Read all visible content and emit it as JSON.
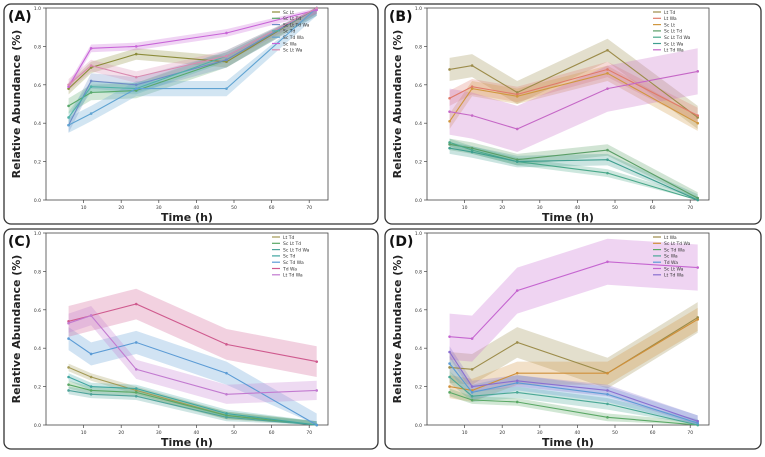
{
  "chart_data": [
    {
      "type": "line",
      "panel_label": "(A)",
      "xlabel": "Time (h)",
      "ylabel": "Relative Abundance (%)",
      "xlim": [
        0,
        75
      ],
      "ylim": [
        0,
        1.0
      ],
      "xticks": [
        10,
        20,
        30,
        40,
        50,
        60,
        70
      ],
      "yticks": [
        0.0,
        0.2,
        0.4,
        0.6,
        0.8,
        1.0
      ],
      "legend_position": "top-right",
      "x": [
        6,
        12,
        24,
        48,
        72
      ],
      "series": [
        {
          "name": "Sc Lt",
          "color": "#8c8c3a",
          "values": [
            0.58,
            0.69,
            0.76,
            0.72,
            1.0
          ],
          "band": 0.03
        },
        {
          "name": "Sc Lt Td",
          "color": "#58a86a",
          "values": [
            0.49,
            0.56,
            0.57,
            0.73,
            1.0
          ],
          "band": 0.04
        },
        {
          "name": "Sc Lt Td Wa",
          "color": "#6e8bc7",
          "values": [
            0.39,
            0.62,
            0.6,
            0.73,
            1.0
          ],
          "band": 0.04
        },
        {
          "name": "Sc Td",
          "color": "#4fb3a8",
          "values": [
            0.43,
            0.59,
            0.58,
            0.75,
            1.0
          ],
          "band": 0.03
        },
        {
          "name": "Sc Td Wa",
          "color": "#5fa3d2",
          "values": [
            0.39,
            0.45,
            0.58,
            0.58,
            1.0
          ],
          "band": 0.04
        },
        {
          "name": "Sc Wa",
          "color": "#c865d8",
          "values": [
            0.59,
            0.79,
            0.8,
            0.87,
            0.99
          ],
          "band": 0.02
        },
        {
          "name": "Sc Lt Wa",
          "color": "#d98ab0",
          "values": [
            0.6,
            0.7,
            0.64,
            0.75,
            1.0
          ],
          "band": 0.03
        }
      ]
    },
    {
      "type": "line",
      "panel_label": "(B)",
      "xlabel": "Time (h)",
      "ylabel": "Relative Abundance (%)",
      "xlim": [
        0,
        75
      ],
      "ylim": [
        0,
        1.0
      ],
      "xticks": [
        10,
        20,
        30,
        40,
        50,
        60,
        70
      ],
      "yticks": [
        0.0,
        0.2,
        0.4,
        0.6,
        0.8,
        1.0
      ],
      "legend_position": "top-right",
      "x": [
        6,
        12,
        24,
        48,
        72
      ],
      "series": [
        {
          "name": "Lt Td",
          "color": "#9c8c4a",
          "values": [
            0.68,
            0.7,
            0.56,
            0.78,
            0.43
          ],
          "band": 0.06
        },
        {
          "name": "Lt Wa",
          "color": "#e07a6a",
          "values": [
            0.53,
            0.59,
            0.55,
            0.68,
            0.44
          ],
          "band": 0.04
        },
        {
          "name": "Sc Lt",
          "color": "#d0973f",
          "values": [
            0.41,
            0.58,
            0.54,
            0.66,
            0.4
          ],
          "band": 0.04
        },
        {
          "name": "Sc Lt Td",
          "color": "#5a9e66",
          "values": [
            0.29,
            0.27,
            0.21,
            0.26,
            0.01
          ],
          "band": 0.03
        },
        {
          "name": "Sc Lt Td Wa",
          "color": "#4aa88a",
          "values": [
            0.3,
            0.26,
            0.2,
            0.14,
            0.0
          ],
          "band": 0.02
        },
        {
          "name": "Sc Lt Wa",
          "color": "#3f9e8f",
          "values": [
            0.27,
            0.25,
            0.2,
            0.21,
            0.0
          ],
          "band": 0.03
        },
        {
          "name": "Lt Td Wa",
          "color": "#c567c6",
          "values": [
            0.46,
            0.44,
            0.37,
            0.58,
            0.67
          ],
          "band": 0.12
        }
      ]
    },
    {
      "type": "line",
      "panel_label": "(C)",
      "xlabel": "Time (h)",
      "ylabel": "Relative Abundance (%)",
      "xlim": [
        0,
        75
      ],
      "ylim": [
        0,
        1.0
      ],
      "xticks": [
        10,
        20,
        30,
        40,
        50,
        60,
        70
      ],
      "yticks": [
        0.0,
        0.2,
        0.4,
        0.6,
        0.8,
        1.0
      ],
      "legend_position": "top-right",
      "x": [
        6,
        12,
        24,
        48,
        72
      ],
      "series": [
        {
          "name": "Lt Td",
          "color": "#a39a55",
          "values": [
            0.3,
            0.25,
            0.18,
            0.05,
            0.0
          ],
          "band": 0.02
        },
        {
          "name": "Sc Lt Td",
          "color": "#5aa865",
          "values": [
            0.21,
            0.18,
            0.17,
            0.05,
            0.0
          ],
          "band": 0.02
        },
        {
          "name": "Sc Lt Td Wa",
          "color": "#4fa39a",
          "values": [
            0.18,
            0.16,
            0.15,
            0.04,
            0.0
          ],
          "band": 0.02
        },
        {
          "name": "Sc Td",
          "color": "#3fa6a0",
          "values": [
            0.25,
            0.2,
            0.19,
            0.06,
            0.0
          ],
          "band": 0.02
        },
        {
          "name": "Sc Td Wa",
          "color": "#5b9bd5",
          "values": [
            0.45,
            0.37,
            0.43,
            0.27,
            0.0
          ],
          "band": 0.06
        },
        {
          "name": "Td Wa",
          "color": "#cf5a8e",
          "values": [
            0.54,
            0.57,
            0.63,
            0.42,
            0.33
          ],
          "band": 0.08
        },
        {
          "name": "Lt Td Wa",
          "color": "#c27ad0",
          "values": [
            0.53,
            0.57,
            0.29,
            0.16,
            0.18
          ],
          "band": 0.05
        }
      ]
    },
    {
      "type": "line",
      "panel_label": "(D)",
      "xlabel": "Time (h)",
      "ylabel": "Relative Abundance (%)",
      "xlim": [
        0,
        75
      ],
      "ylim": [
        0,
        1.0
      ],
      "xticks": [
        10,
        20,
        30,
        40,
        50,
        60,
        70
      ],
      "yticks": [
        0.0,
        0.2,
        0.4,
        0.6,
        0.8,
        1.0
      ],
      "legend_position": "top-right",
      "x": [
        6,
        12,
        24,
        48,
        72
      ],
      "series": [
        {
          "name": "Lt Wa",
          "color": "#9c8c4a",
          "values": [
            0.3,
            0.29,
            0.43,
            0.27,
            0.56
          ],
          "band": 0.08
        },
        {
          "name": "Sc Lt Td Wa",
          "color": "#d0903a",
          "values": [
            0.2,
            0.18,
            0.27,
            0.27,
            0.55
          ],
          "band": 0.06
        },
        {
          "name": "Sc Td Wa",
          "color": "#5aa865",
          "values": [
            0.17,
            0.13,
            0.12,
            0.04,
            0.0
          ],
          "band": 0.02
        },
        {
          "name": "Sc Wa",
          "color": "#4aa896",
          "values": [
            0.25,
            0.15,
            0.17,
            0.11,
            0.0
          ],
          "band": 0.03
        },
        {
          "name": "Td Wa",
          "color": "#5b9bd5",
          "values": [
            0.32,
            0.17,
            0.22,
            0.16,
            0.01
          ],
          "band": 0.04
        },
        {
          "name": "Sc Lt Wa",
          "color": "#c565d0",
          "values": [
            0.46,
            0.45,
            0.7,
            0.85,
            0.82
          ],
          "band": 0.12
        },
        {
          "name": "Lt Td Wa",
          "color": "#8a6fd0",
          "values": [
            0.38,
            0.2,
            0.23,
            0.18,
            0.02
          ],
          "band": 0.03
        }
      ]
    }
  ]
}
